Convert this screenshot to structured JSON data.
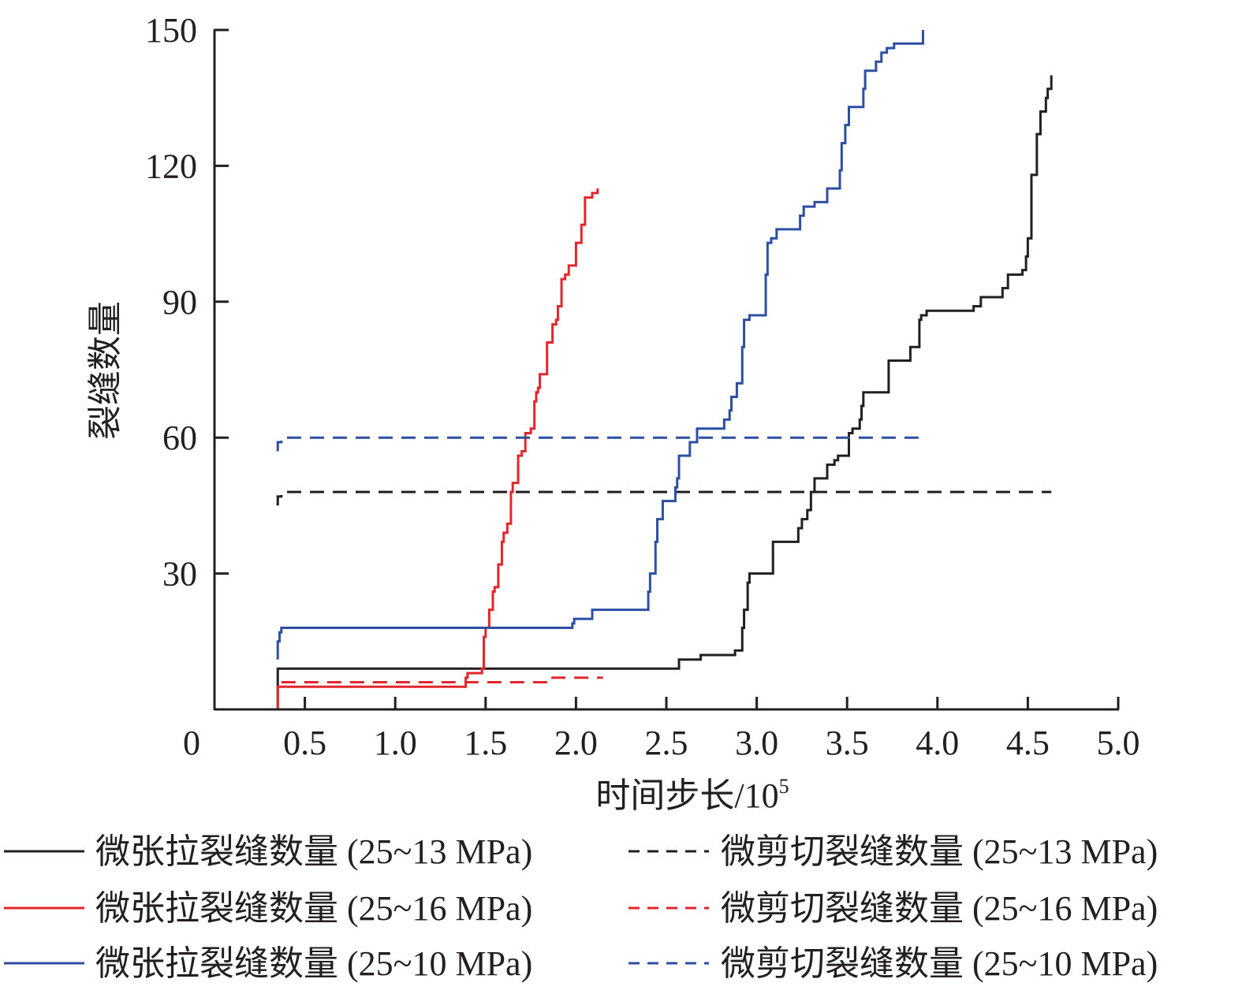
{
  "chart_data": {
    "type": "line",
    "title": "",
    "xlabel": "时间步长/10",
    "xlabel_sup": "5",
    "ylabel": "裂缝数量",
    "xlim": [
      0,
      5.0
    ],
    "ylim": [
      0,
      150
    ],
    "x_ticks": [
      "0",
      "0.5",
      "1.0",
      "1.5",
      "2.0",
      "2.5",
      "3.0",
      "3.5",
      "4.0",
      "4.5",
      "5.0"
    ],
    "x_tick_values": [
      0,
      0.5,
      1.0,
      1.5,
      2.0,
      2.5,
      3.0,
      3.5,
      4.0,
      4.5,
      5.0
    ],
    "y_ticks": [
      "30",
      "60",
      "90",
      "120",
      "150"
    ],
    "y_tick_values": [
      30,
      60,
      90,
      120,
      150
    ],
    "grid": false,
    "legend_position": "bottom",
    "series": [
      {
        "name": "微张拉裂缝数量 (25~13 MPa)",
        "color": "#231f20",
        "dash": false,
        "points": [
          [
            0.35,
            0
          ],
          [
            0.35,
            9
          ],
          [
            2.57,
            11
          ],
          [
            2.69,
            12
          ],
          [
            2.88,
            13
          ],
          [
            2.92,
            18
          ],
          [
            2.93,
            22
          ],
          [
            2.95,
            28
          ],
          [
            2.96,
            30
          ],
          [
            3.09,
            37
          ],
          [
            3.23,
            40
          ],
          [
            3.25,
            42
          ],
          [
            3.28,
            44
          ],
          [
            3.3,
            48
          ],
          [
            3.32,
            51
          ],
          [
            3.39,
            54
          ],
          [
            3.43,
            55
          ],
          [
            3.45,
            56
          ],
          [
            3.51,
            61
          ],
          [
            3.53,
            62
          ],
          [
            3.57,
            64
          ],
          [
            3.58,
            67
          ],
          [
            3.59,
            70
          ],
          [
            3.73,
            77
          ],
          [
            3.85,
            80
          ],
          [
            3.9,
            86
          ],
          [
            3.91,
            87
          ],
          [
            3.94,
            88
          ],
          [
            4.2,
            89
          ],
          [
            4.24,
            91
          ],
          [
            4.36,
            93
          ],
          [
            4.39,
            96
          ],
          [
            4.47,
            97
          ],
          [
            4.49,
            100
          ],
          [
            4.5,
            104
          ],
          [
            4.52,
            118
          ],
          [
            4.55,
            127
          ],
          [
            4.57,
            132
          ],
          [
            4.6,
            135
          ],
          [
            4.61,
            137
          ],
          [
            4.63,
            140
          ]
        ]
      },
      {
        "name": "微剪切裂缝数量 (25~13 MPa)",
        "color": "#231f20",
        "dash": true,
        "points": [
          [
            0.35,
            45
          ],
          [
            0.35,
            47
          ],
          [
            0.37,
            48
          ],
          [
            4.63,
            48
          ]
        ]
      },
      {
        "name": "微张拉裂缝数量 (25~16 MPa)",
        "color": "#e3262c",
        "dash": false,
        "points": [
          [
            0.35,
            0
          ],
          [
            0.35,
            5
          ],
          [
            1.39,
            7
          ],
          [
            1.4,
            8
          ],
          [
            1.48,
            9
          ],
          [
            1.49,
            16
          ],
          [
            1.5,
            18
          ],
          [
            1.52,
            22
          ],
          [
            1.54,
            26
          ],
          [
            1.55,
            27
          ],
          [
            1.57,
            32
          ],
          [
            1.59,
            37
          ],
          [
            1.6,
            39
          ],
          [
            1.62,
            41
          ],
          [
            1.64,
            48
          ],
          [
            1.65,
            50
          ],
          [
            1.68,
            56
          ],
          [
            1.7,
            57
          ],
          [
            1.72,
            61
          ],
          [
            1.75,
            62
          ],
          [
            1.77,
            68
          ],
          [
            1.78,
            70
          ],
          [
            1.79,
            71
          ],
          [
            1.8,
            74
          ],
          [
            1.84,
            81
          ],
          [
            1.87,
            85
          ],
          [
            1.89,
            86
          ],
          [
            1.9,
            89
          ],
          [
            1.92,
            95
          ],
          [
            1.94,
            96
          ],
          [
            1.96,
            98
          ],
          [
            2.0,
            103
          ],
          [
            2.03,
            107
          ],
          [
            2.05,
            113
          ],
          [
            2.09,
            114
          ],
          [
            2.12,
            115
          ]
        ]
      },
      {
        "name": "微剪切裂缝数量 (25~16 MPa)",
        "color": "#e3262c",
        "dash": true,
        "points": [
          [
            0.37,
            6
          ],
          [
            1.87,
            7
          ],
          [
            2.15,
            7
          ]
        ]
      },
      {
        "name": "微张拉裂缝数量 (25~10 MPa)",
        "color": "#2d4fa3",
        "dash": false,
        "points": [
          [
            0.35,
            11
          ],
          [
            0.35,
            15
          ],
          [
            0.36,
            17
          ],
          [
            0.37,
            18
          ],
          [
            1.98,
            19
          ],
          [
            1.99,
            20
          ],
          [
            2.09,
            22
          ],
          [
            2.4,
            26
          ],
          [
            2.41,
            30
          ],
          [
            2.44,
            37
          ],
          [
            2.45,
            42
          ],
          [
            2.48,
            46
          ],
          [
            2.55,
            49
          ],
          [
            2.56,
            51
          ],
          [
            2.57,
            56
          ],
          [
            2.63,
            59
          ],
          [
            2.67,
            62
          ],
          [
            2.82,
            64
          ],
          [
            2.85,
            66
          ],
          [
            2.86,
            69
          ],
          [
            2.89,
            72
          ],
          [
            2.92,
            80
          ],
          [
            2.93,
            86
          ],
          [
            2.96,
            87
          ],
          [
            3.05,
            96
          ],
          [
            3.06,
            103
          ],
          [
            3.08,
            104
          ],
          [
            3.11,
            106
          ],
          [
            3.24,
            109
          ],
          [
            3.26,
            111
          ],
          [
            3.32,
            112
          ],
          [
            3.39,
            115
          ],
          [
            3.46,
            119
          ],
          [
            3.47,
            125
          ],
          [
            3.49,
            129
          ],
          [
            3.51,
            133
          ],
          [
            3.59,
            137
          ],
          [
            3.6,
            141
          ],
          [
            3.66,
            143
          ],
          [
            3.69,
            145
          ],
          [
            3.72,
            146
          ],
          [
            3.76,
            147
          ],
          [
            3.92,
            150
          ]
        ]
      },
      {
        "name": "微剪切裂缝数量 (25~10 MPa)",
        "color": "#2d4fa3",
        "dash": true,
        "points": [
          [
            0.35,
            57
          ],
          [
            0.35,
            59
          ],
          [
            0.37,
            60
          ],
          [
            3.93,
            60
          ]
        ]
      }
    ]
  }
}
